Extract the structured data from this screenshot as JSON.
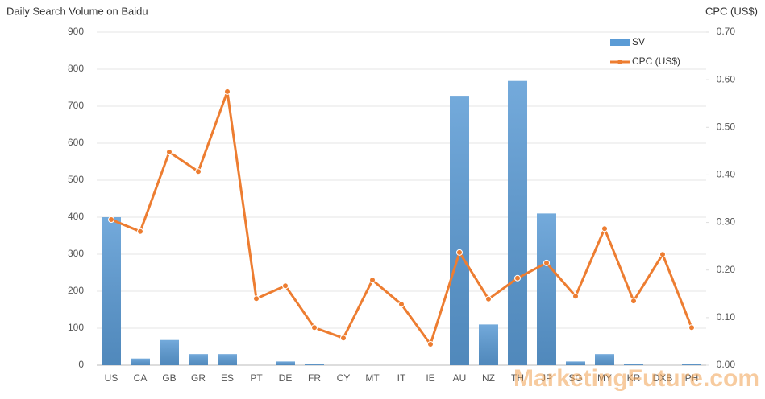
{
  "chart_data": {
    "type": "bar-line",
    "title": "Daily Search Volume on Baidu",
    "y2_label": "CPC (US$)",
    "categories": [
      "US",
      "CA",
      "GB",
      "GR",
      "ES",
      "PT",
      "DE",
      "FR",
      "CY",
      "MT",
      "IT",
      "IE",
      "AU",
      "NZ",
      "TH",
      "JP",
      "SG",
      "MY",
      "KR",
      "DXB",
      "PH"
    ],
    "series": [
      {
        "name": "SV",
        "type": "bar",
        "color": "#5b9bd5",
        "values": [
          400,
          18,
          68,
          30,
          30,
          0,
          10,
          3,
          0,
          0,
          0,
          0,
          728,
          110,
          768,
          410,
          10,
          30,
          3,
          0,
          3
        ]
      },
      {
        "name": "CPC (US$)",
        "type": "line",
        "axis": "y2",
        "color": "#ed7d31",
        "values": [
          0.306,
          0.281,
          0.448,
          0.407,
          0.575,
          0.14,
          0.167,
          0.079,
          0.057,
          0.179,
          0.128,
          0.044,
          0.237,
          0.139,
          0.183,
          0.215,
          0.145,
          0.287,
          0.135,
          0.233,
          0.079
        ]
      }
    ],
    "ylim": [
      0,
      900
    ],
    "yticks": [
      0,
      100,
      200,
      300,
      400,
      500,
      600,
      700,
      800,
      900
    ],
    "y2lim": [
      0,
      0.7
    ],
    "y2ticks": [
      {
        "value": 0,
        "label": "0.00"
      },
      {
        "value": 0.1,
        "label": "0.10"
      },
      {
        "value": 0.2,
        "label": "0.20"
      },
      {
        "value": 0.3,
        "label": "0.30"
      },
      {
        "value": 0.4,
        "label": "0.40"
      },
      {
        "value": 0.5,
        "label": "0.50"
      },
      {
        "value": 0.6,
        "label": "0.60"
      },
      {
        "value": 0.7,
        "label": "0.70"
      }
    ],
    "grid": true,
    "legend": "top-right",
    "watermark": "MarketingFuture.com"
  }
}
